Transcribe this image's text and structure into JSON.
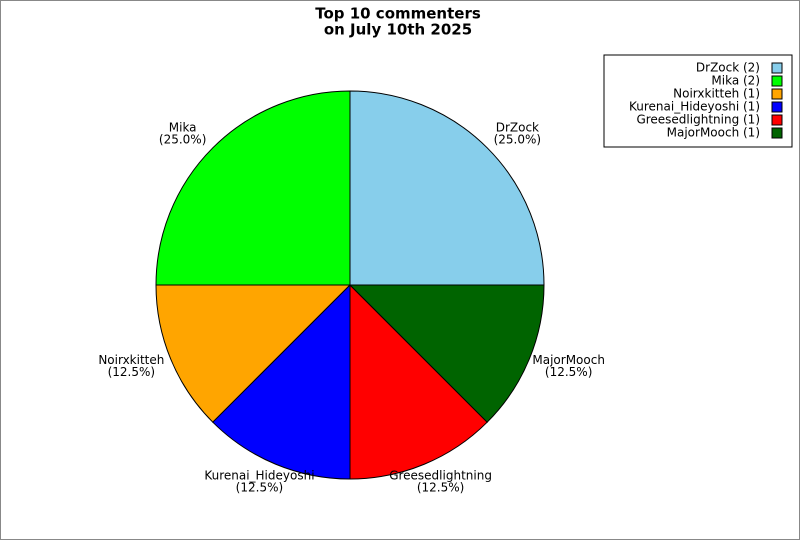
{
  "chart_data": {
    "type": "pie",
    "title": [
      "Top 10 commenters",
      "on July 10th 2025"
    ],
    "categories": [
      "DrZock",
      "Mika",
      "Noirxkitteh",
      "Kurenai_Hideyoshi",
      "Greesedlightning",
      "MajorMooch"
    ],
    "values": [
      25,
      25,
      12.5,
      12.5,
      12.5,
      12.5
    ],
    "value_labels": [
      "(25.0%)",
      "(25.0%)",
      "(12.5%)",
      "(12.5%)",
      "(12.5%)",
      "(12.5%)"
    ],
    "colors": [
      "#87ceeb",
      "#00ff00",
      "#ffa500",
      "#0000ff",
      "#ff0000",
      "#006400"
    ],
    "legend": [
      "DrZock (2)",
      "Mika (2)",
      "Noirxkitteh (1)",
      "Kurenai_Hideyoshi (1)",
      "Greesedlightning (1)",
      "MajorMooch (1)"
    ],
    "legend_position": "upper right"
  }
}
